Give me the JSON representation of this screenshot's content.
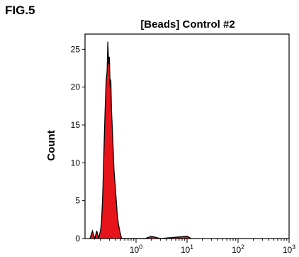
{
  "figure_label": "FIG.5",
  "chart_data": {
    "type": "area",
    "title": "[Beads] Control #2",
    "xlabel": "",
    "ylabel": "Count",
    "x_scale": "log",
    "xlim": [
      0.1,
      1000
    ],
    "ylim": [
      0,
      27
    ],
    "y_ticks": [
      0,
      5,
      10,
      15,
      20,
      25
    ],
    "x_ticks": [
      {
        "value": 1,
        "base": "10",
        "exp": "0"
      },
      {
        "value": 10,
        "base": "10",
        "exp": "1"
      },
      {
        "value": 100,
        "base": "10",
        "exp": "2"
      },
      {
        "value": 1000,
        "base": "10",
        "exp": "3"
      }
    ],
    "grid": false,
    "fill_color": "#e8141c",
    "outline_color": "#000000",
    "series": [
      {
        "x": [
          0.125,
          0.14,
          0.155,
          0.17,
          0.185,
          0.2,
          0.21,
          0.22,
          0.23,
          0.24,
          0.25,
          0.26,
          0.27,
          0.28,
          0.29,
          0.3,
          0.31,
          0.32,
          0.33,
          0.34,
          0.35,
          0.37,
          0.39,
          0.41,
          0.43,
          0.45,
          0.48,
          0.52,
          0.6,
          1.5,
          2.0,
          3.0,
          10.0,
          12.0
        ],
        "values": [
          0,
          1,
          0,
          1,
          0,
          1,
          2,
          5,
          9,
          14,
          18,
          21,
          22,
          26,
          23,
          24,
          20,
          21,
          17,
          15,
          13,
          9,
          7,
          5,
          3,
          2,
          1,
          0,
          0,
          0,
          0.3,
          0,
          0.3,
          0
        ]
      }
    ]
  }
}
